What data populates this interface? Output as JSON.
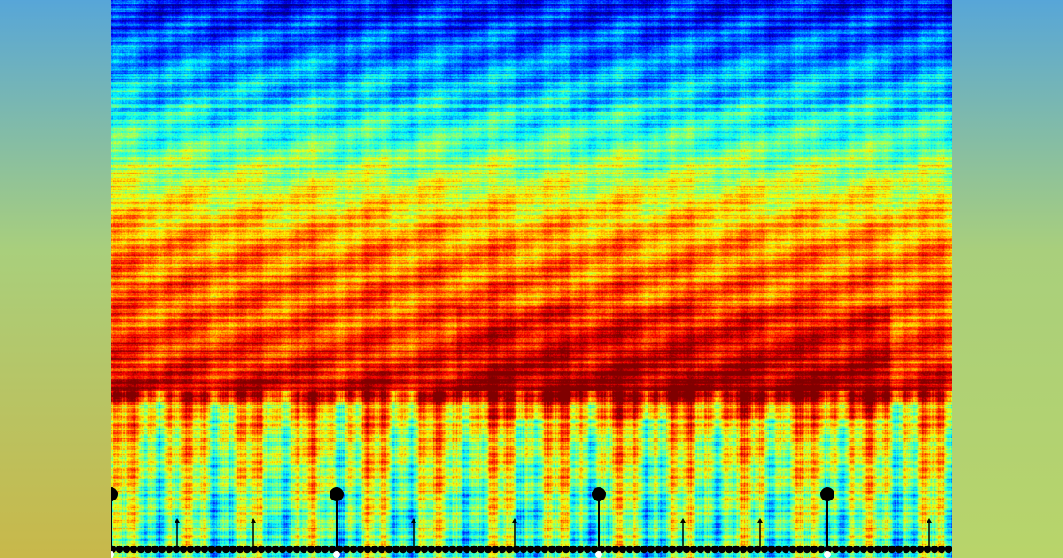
{
  "colors": {
    "side_top": "#57a6d8",
    "side_mid": "#a9cf7c",
    "side_left_bottom": "#c8b84a",
    "side_right_bottom": "#b8d46a",
    "colormap": "jet",
    "marker_color": "#000000"
  },
  "spectrogram": {
    "colormap": "jet",
    "description_free": true
  },
  "onset_markers": {
    "major_count": 4,
    "minor_count": 7,
    "baseline_dots": true
  }
}
